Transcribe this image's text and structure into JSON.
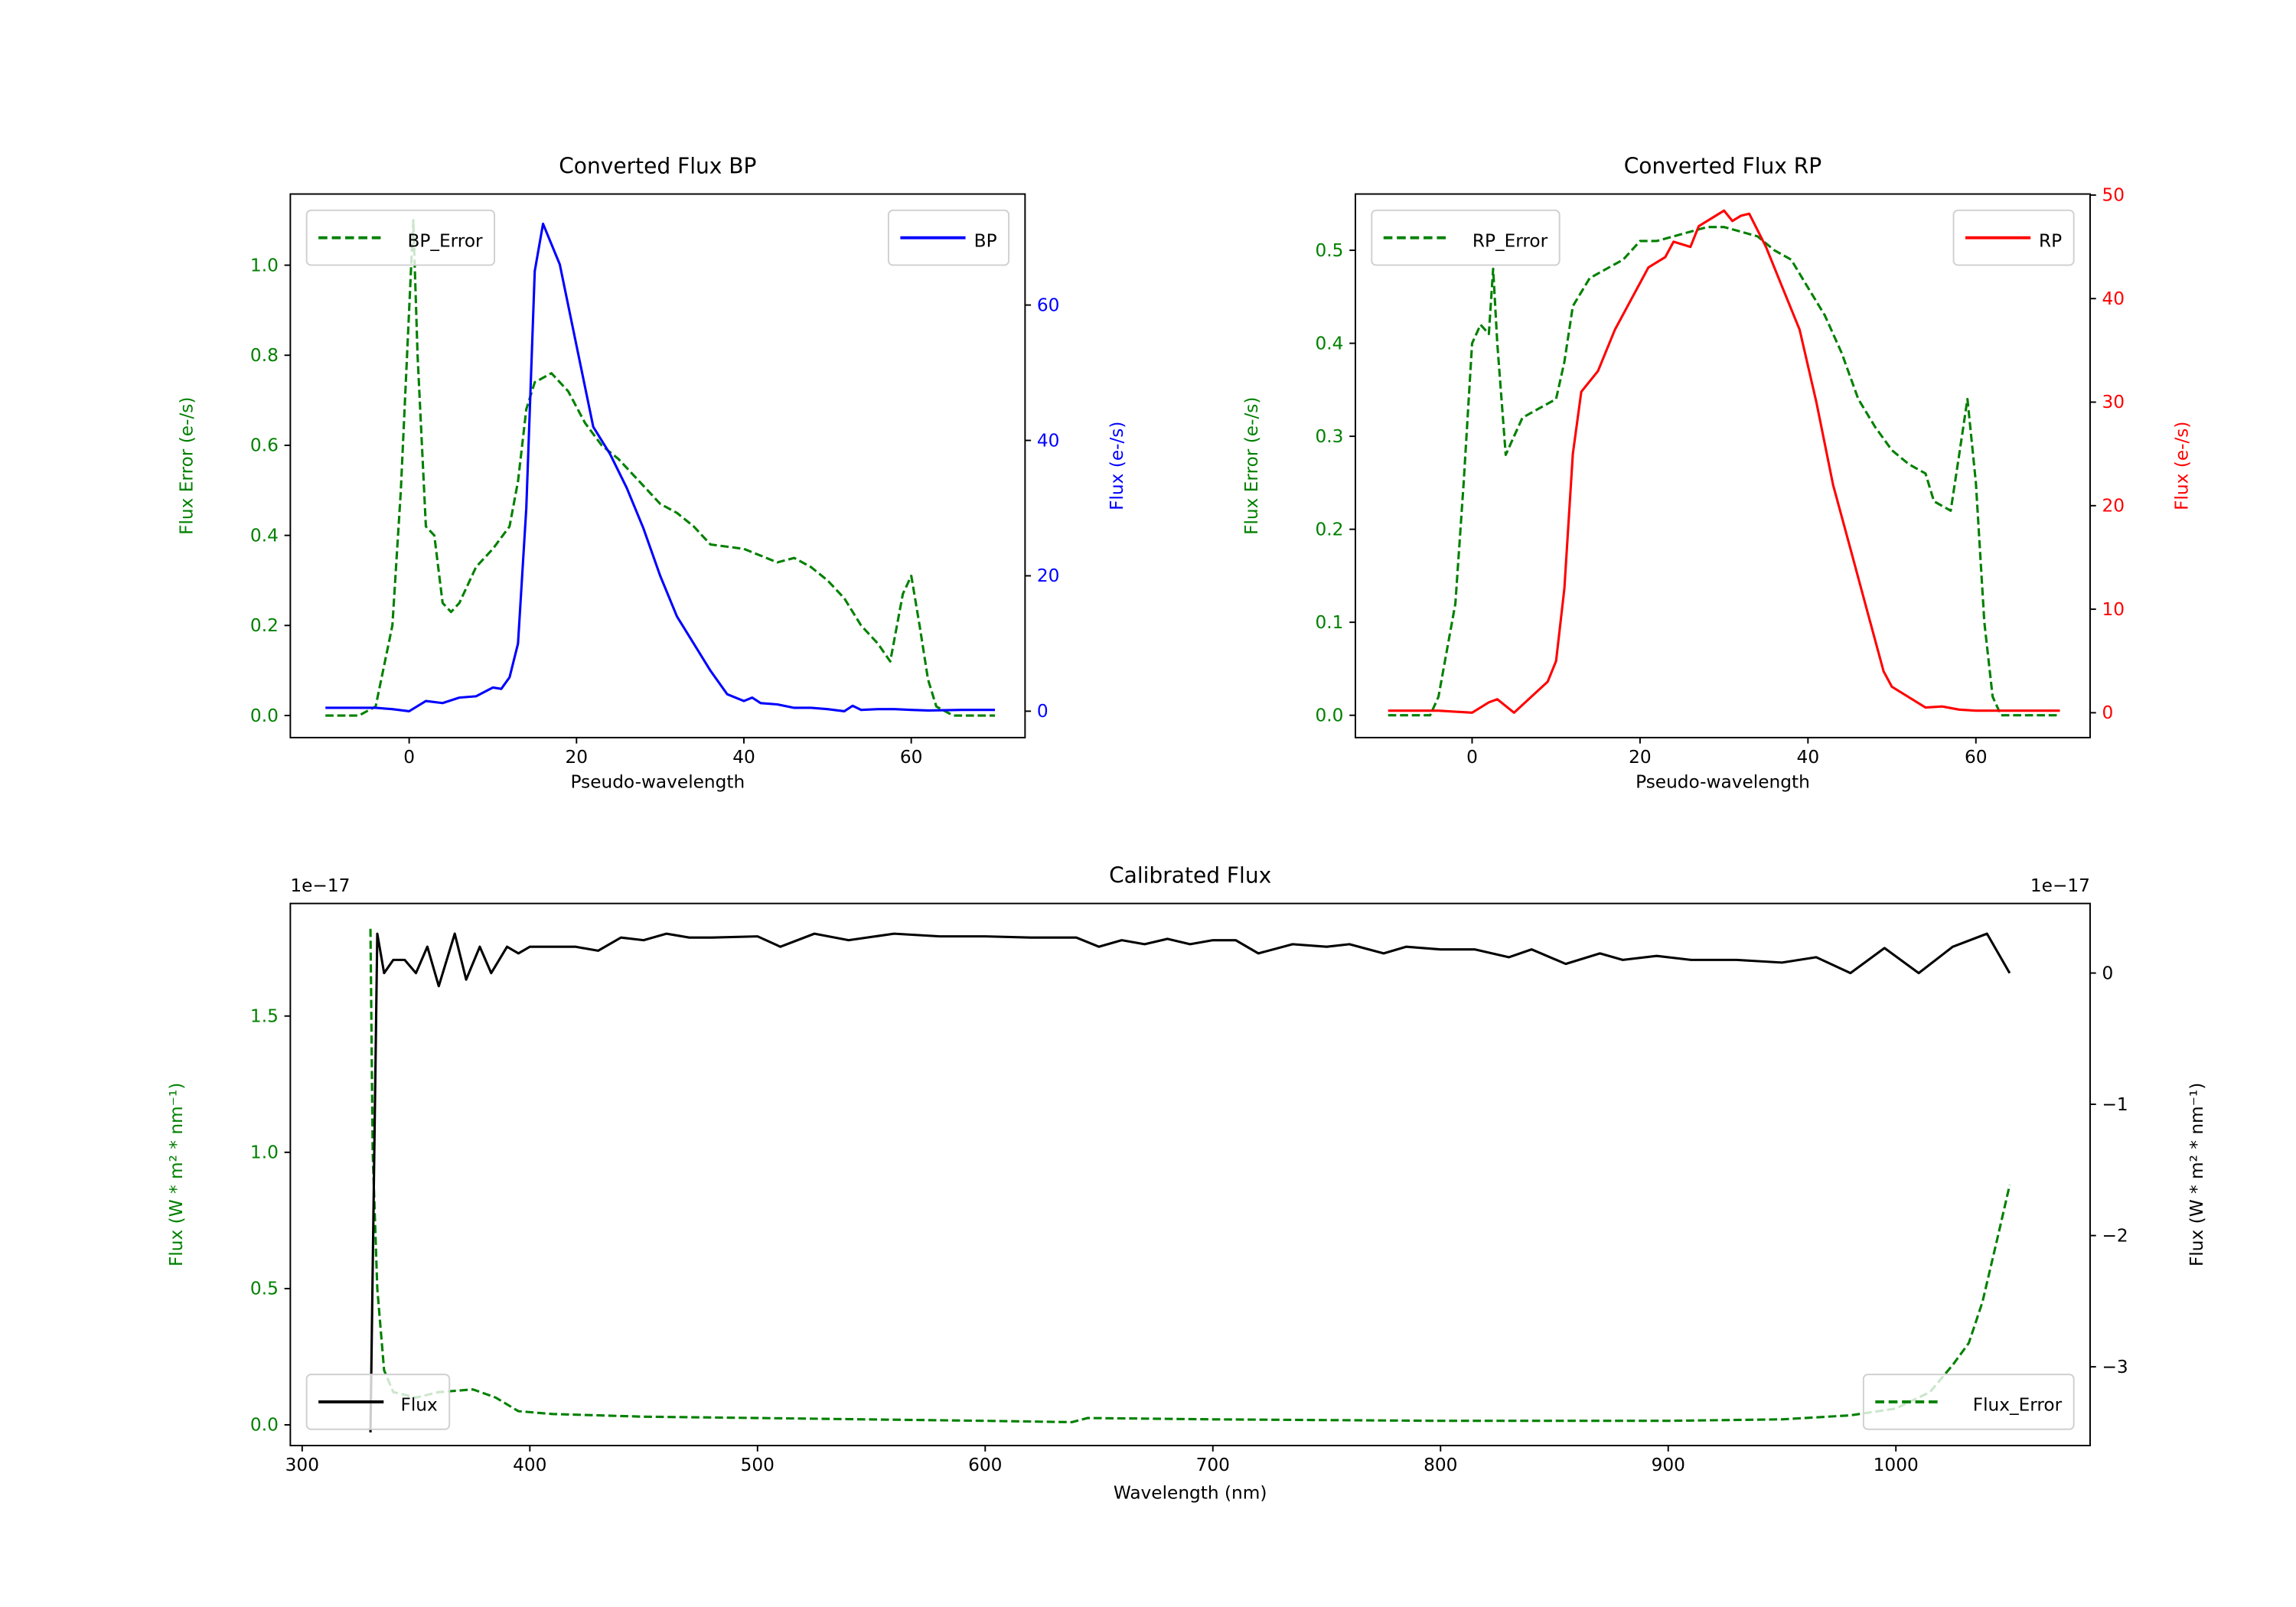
{
  "colors": {
    "error": "#008000",
    "bp": "#0000ff",
    "rp": "#ff0000",
    "flux": "#000000"
  },
  "chart_data": [
    {
      "id": "bp",
      "type": "line",
      "title": "Converted Flux BP",
      "xlabel": "Pseudo-wavelength",
      "ylabel_left": "Flux Error (e-/s)",
      "ylabel_right": "Flux (e-/s)",
      "xlim": [
        -14.2,
        73.6
      ],
      "ylim_left": [
        -0.049,
        1.158
      ],
      "ylim_right": [
        -3.9,
        76.4
      ],
      "xticks": [
        0,
        20,
        40,
        60
      ],
      "xtick_labels": [
        "0",
        "20",
        "40",
        "60"
      ],
      "yticks_left": [
        0,
        0.2,
        0.4,
        0.6,
        0.8,
        1.0
      ],
      "ytick_labels_left": [
        "0.0",
        "0.2",
        "0.4",
        "0.6",
        "0.8",
        "1.0"
      ],
      "yticks_right": [
        0,
        20,
        40,
        60
      ],
      "ytick_labels_right": [
        "0",
        "20",
        "40",
        "60"
      ],
      "legend_left": {
        "label": "BP_Error",
        "placement": "upper-left"
      },
      "legend_right": {
        "label": "BP",
        "placement": "upper-right"
      },
      "series": [
        {
          "name": "BP_Error",
          "axis": "left",
          "style": "dashed",
          "color_key": "error",
          "x": [
            -10,
            -6,
            -4,
            -2,
            -1,
            0,
            0.5,
            1,
            2,
            3,
            4,
            5,
            6,
            8,
            10,
            12,
            13,
            14,
            15,
            17,
            19,
            21,
            23,
            25,
            27,
            30,
            32,
            34,
            36,
            40,
            44,
            46,
            48,
            50,
            52,
            54,
            56,
            57.5,
            59,
            60,
            61,
            62,
            63,
            65,
            70
          ],
          "y": [
            0,
            0,
            0.02,
            0.2,
            0.5,
            0.9,
            1.1,
            0.8,
            0.42,
            0.4,
            0.25,
            0.23,
            0.25,
            0.33,
            0.37,
            0.42,
            0.52,
            0.68,
            0.74,
            0.76,
            0.72,
            0.65,
            0.6,
            0.57,
            0.53,
            0.47,
            0.45,
            0.42,
            0.38,
            0.37,
            0.34,
            0.35,
            0.33,
            0.3,
            0.26,
            0.2,
            0.16,
            0.12,
            0.27,
            0.31,
            0.2,
            0.08,
            0.02,
            0,
            0
          ]
        },
        {
          "name": "BP",
          "axis": "right",
          "style": "solid",
          "color_key": "bp",
          "x": [
            -10,
            -4,
            -2,
            0,
            2,
            4,
            6,
            8,
            10,
            11,
            12,
            13,
            14,
            15,
            16,
            18,
            20,
            22,
            24,
            26,
            28,
            30,
            32,
            34,
            36,
            38,
            40,
            41,
            42,
            44,
            46,
            48,
            50,
            52,
            53,
            54,
            56,
            58,
            60,
            62,
            66,
            70
          ],
          "y": [
            0.5,
            0.5,
            0.3,
            0,
            1.5,
            1.2,
            2,
            2.2,
            3.5,
            3.3,
            5,
            10,
            30,
            65,
            72,
            66,
            54,
            42,
            38,
            33,
            27,
            20,
            14,
            10,
            6,
            2.5,
            1.5,
            2,
            1.2,
            1,
            0.5,
            0.5,
            0.3,
            0,
            0.8,
            0.2,
            0.3,
            0.3,
            0.2,
            0.1,
            0.2,
            0.2
          ]
        }
      ]
    },
    {
      "id": "rp",
      "type": "line",
      "title": "Converted Flux RP",
      "xlabel": "Pseudo-wavelength",
      "ylabel_left": "Flux Error (e-/s)",
      "ylabel_right": "Flux (e-/s)",
      "xlim": [
        -13.9,
        73.6
      ],
      "ylim_left": [
        -0.024,
        0.5605
      ],
      "ylim_right": [
        -2.4,
        50.1
      ],
      "xticks": [
        0,
        20,
        40,
        60
      ],
      "xtick_labels": [
        "0",
        "20",
        "40",
        "60"
      ],
      "yticks_left": [
        0,
        0.1,
        0.2,
        0.3,
        0.4,
        0.5
      ],
      "ytick_labels_left": [
        "0.0",
        "0.1",
        "0.2",
        "0.3",
        "0.4",
        "0.5"
      ],
      "yticks_right": [
        0,
        10,
        20,
        30,
        40,
        50
      ],
      "ytick_labels_right": [
        "0",
        "10",
        "20",
        "30",
        "40",
        "50"
      ],
      "legend_left": {
        "label": "RP_Error",
        "placement": "upper-left"
      },
      "legend_right": {
        "label": "RP",
        "placement": "upper-right"
      },
      "series": [
        {
          "name": "RP_Error",
          "axis": "left",
          "style": "dashed",
          "color_key": "error",
          "x": [
            -10,
            -5,
            -4,
            -2,
            -1,
            0,
            1,
            2,
            2.5,
            3,
            4,
            5,
            6,
            8,
            10,
            11,
            12,
            14,
            16,
            18,
            20,
            22,
            24,
            26,
            28,
            30,
            32,
            34,
            36,
            38,
            40,
            42,
            44,
            46,
            48,
            50,
            52,
            54,
            55,
            57,
            58,
            59,
            60,
            61,
            62,
            63,
            70
          ],
          "y": [
            0,
            0,
            0.02,
            0.12,
            0.25,
            0.4,
            0.42,
            0.41,
            0.48,
            0.4,
            0.28,
            0.3,
            0.32,
            0.33,
            0.34,
            0.38,
            0.44,
            0.47,
            0.48,
            0.49,
            0.51,
            0.51,
            0.515,
            0.52,
            0.525,
            0.525,
            0.52,
            0.515,
            0.5,
            0.49,
            0.46,
            0.43,
            0.39,
            0.34,
            0.31,
            0.285,
            0.27,
            0.26,
            0.23,
            0.22,
            0.28,
            0.34,
            0.25,
            0.1,
            0.02,
            0,
            0
          ]
        },
        {
          "name": "RP",
          "axis": "right",
          "style": "solid",
          "color_key": "rp",
          "x": [
            -10,
            -4,
            0,
            2,
            3,
            5,
            7,
            9,
            10,
            11,
            12,
            13,
            15,
            17,
            19,
            21,
            23,
            24,
            26,
            27,
            29,
            30,
            31,
            32,
            33,
            35,
            37,
            39,
            41,
            43,
            45,
            47,
            48,
            49,
            50,
            52,
            54,
            56,
            58,
            60,
            70
          ],
          "y": [
            0.2,
            0.2,
            0,
            1,
            1.3,
            0,
            1.5,
            3,
            5,
            12,
            25,
            31,
            33,
            37,
            40,
            43,
            44,
            45.5,
            45,
            47,
            48,
            48.5,
            47.5,
            48,
            48.2,
            45,
            41,
            37,
            30,
            22,
            16,
            10,
            7,
            4,
            2.5,
            1.5,
            0.5,
            0.6,
            0.3,
            0.2,
            0.2
          ]
        }
      ]
    },
    {
      "id": "cal",
      "type": "line",
      "title": "Calibrated Flux",
      "xlabel": "Wavelength (nm)",
      "ylabel_left": "Flux (W * m² * nm⁻¹)",
      "ylabel_right": "Flux (W * m² * nm⁻¹)",
      "offset_left": "1e−17",
      "offset_right": "1e−17",
      "xlim": [
        294.8,
        1085.3
      ],
      "ylim_left": [
        -0.076,
        1.913
      ],
      "ylim_right": [
        -3.6,
        0.53
      ],
      "xticks": [
        300,
        400,
        500,
        600,
        700,
        800,
        900,
        1000
      ],
      "xtick_labels": [
        "300",
        "400",
        "500",
        "600",
        "700",
        "800",
        "900",
        "1000"
      ],
      "yticks_left": [
        0,
        0.5,
        1.0,
        1.5
      ],
      "ytick_labels_left": [
        "0.0",
        "0.5",
        "1.0",
        "1.5"
      ],
      "yticks_right": [
        0,
        -1,
        -2,
        -3
      ],
      "ytick_labels_right": [
        "0",
        "−1",
        "−2",
        "−3"
      ],
      "legend_left": {
        "label": "Flux",
        "placement": "lower-left"
      },
      "legend_right": {
        "label": "Flux_Error",
        "placement": "lower-right"
      },
      "series": [
        {
          "name": "Flux_Error",
          "axis": "left",
          "style": "dashed",
          "color_key": "error",
          "x": [
            330,
            331,
            333,
            336,
            340,
            350,
            360,
            375,
            385,
            395,
            410,
            450,
            500,
            600,
            638,
            645,
            700,
            800,
            900,
            950,
            980,
            1000,
            1015,
            1025,
            1032,
            1038,
            1045,
            1050
          ],
          "y": [
            1.82,
            1.0,
            0.5,
            0.2,
            0.12,
            0.1,
            0.12,
            0.13,
            0.1,
            0.05,
            0.04,
            0.03,
            0.025,
            0.015,
            0.01,
            0.025,
            0.02,
            0.015,
            0.015,
            0.02,
            0.035,
            0.06,
            0.12,
            0.22,
            0.3,
            0.45,
            0.7,
            0.88
          ]
        },
        {
          "name": "Flux",
          "axis": "right",
          "style": "solid",
          "color_key": "flux",
          "x": [
            330,
            333,
            336,
            340,
            345,
            350,
            355,
            360,
            367,
            372,
            378,
            383,
            390,
            395,
            400,
            410,
            420,
            430,
            440,
            450,
            460,
            470,
            480,
            500,
            510,
            525,
            540,
            560,
            580,
            600,
            620,
            640,
            650,
            660,
            670,
            680,
            690,
            700,
            710,
            720,
            735,
            750,
            760,
            775,
            785,
            800,
            815,
            830,
            840,
            855,
            870,
            880,
            895,
            910,
            930,
            950,
            965,
            980,
            995,
            1010,
            1025,
            1040,
            1050
          ],
          "y": [
            -3.5,
            0.3,
            0,
            0.1,
            0.1,
            0,
            0.2,
            -0.1,
            0.3,
            -0.05,
            0.2,
            0,
            0.2,
            0.15,
            0.2,
            0.2,
            0.2,
            0.17,
            0.27,
            0.25,
            0.3,
            0.27,
            0.27,
            0.28,
            0.2,
            0.3,
            0.25,
            0.3,
            0.28,
            0.28,
            0.27,
            0.27,
            0.2,
            0.25,
            0.22,
            0.26,
            0.22,
            0.25,
            0.25,
            0.15,
            0.22,
            0.2,
            0.22,
            0.15,
            0.2,
            0.18,
            0.18,
            0.12,
            0.18,
            0.07,
            0.15,
            0.1,
            0.13,
            0.1,
            0.1,
            0.08,
            0.12,
            0,
            0.19,
            0,
            0.2,
            0.3,
            0
          ]
        }
      ]
    }
  ]
}
